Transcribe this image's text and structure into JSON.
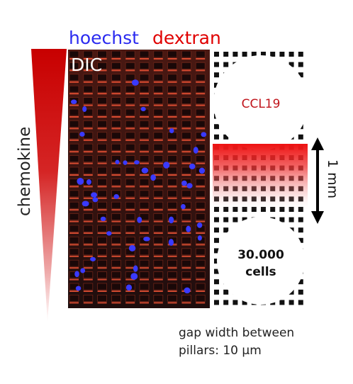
{
  "labels": {
    "hoechst": "hoechst",
    "dextran": "dextran",
    "dic": "DIC",
    "chemokine": "chemokine",
    "ccl19": "CCL19",
    "cells_count": "30.000",
    "cells_word": "cells",
    "scale": "1 mm",
    "caption_line1": "gap width between",
    "caption_line2": "pillars: 10 µm"
  },
  "colors": {
    "hoechst": "#2b2bf0",
    "dextran": "#e00000",
    "gradient_red": "#c80000",
    "chamber_red": "#ee1111",
    "pillar_black": "#111111",
    "micrograph_bg": "#3a1410",
    "cell_blue": "#3a3aff"
  },
  "icons": {
    "scale_bar": "double-arrow-icon"
  }
}
